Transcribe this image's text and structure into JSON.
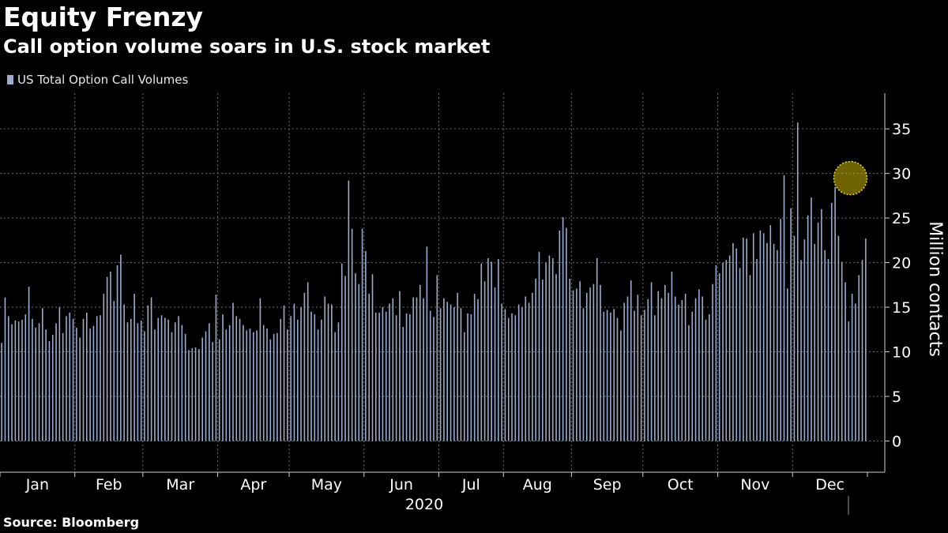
{
  "header": {
    "title": "Equity Frenzy",
    "subtitle": "Call option volume soars in U.S. stock market"
  },
  "footer": {
    "source": "Source: Bloomberg"
  },
  "colors": {
    "background": "#000000",
    "bars": "#9aaccf",
    "grid": "#6e6e6e",
    "highlight": "#c8b400",
    "text": "#ffffff"
  },
  "chart_data": {
    "type": "bar",
    "title": "Equity Frenzy",
    "subtitle": "Call option volume soars in U.S. stock market",
    "legend": [
      "US Total Option Call Volumes"
    ],
    "legend_position": "top-left",
    "ylabel": "Million contacts",
    "year_label": "2020",
    "ylim": [
      -3.5,
      39
    ],
    "yticks": [
      0,
      5,
      10,
      15,
      20,
      25,
      30,
      35
    ],
    "grid": true,
    "y_axis_position": "right",
    "x_ticks": [
      "Jan",
      "Feb",
      "Mar",
      "Apr",
      "May",
      "Jun",
      "Jul",
      "Aug",
      "Sep",
      "Oct",
      "Nov",
      "Dec"
    ],
    "highlight": {
      "note": "circle marking record-high late-December volumes",
      "value": 29.3
    },
    "series": [
      {
        "name": "US Total Option Call Volumes",
        "months": [
          {
            "month": "Jan",
            "values": [
              11.0,
              16.1,
              14.0,
              13.1,
              13.5,
              13.4,
              13.6,
              14.2,
              17.3,
              13.7,
              12.7,
              13.2,
              14.9,
              12.5,
              11.2,
              11.9,
              13.2,
              15.0,
              12.1,
              14.0,
              14.4,
              13.7
            ]
          },
          {
            "month": "Feb",
            "values": [
              12.7,
              11.6,
              13.7,
              14.4,
              12.6,
              12.9,
              14.0,
              14.1,
              16.5,
              18.4,
              19.0,
              15.7,
              19.7,
              20.9,
              15.3,
              13.3,
              13.7,
              16.5,
              13.2,
              13.5
            ]
          },
          {
            "month": "Mar",
            "values": [
              12.3,
              15.2,
              16.1,
              12.5,
              13.8,
              14.1,
              13.8,
              13.6,
              12.2,
              13.3,
              14.0,
              13.0,
              12.0,
              10.2,
              10.4,
              10.5,
              10.3,
              11.6,
              12.3,
              13.2,
              11.1,
              16.4
            ]
          },
          {
            "month": "Apr",
            "values": [
              11.4,
              14.2,
              12.5,
              13.0,
              15.5,
              14.0,
              13.7,
              13.0,
              12.4,
              12.6,
              12.2,
              12.4,
              16.0,
              13.0,
              12.6,
              11.4,
              12.0,
              12.1,
              13.7,
              15.2,
              12.5
            ]
          },
          {
            "month": "May",
            "values": [
              14.0,
              15.4,
              13.6,
              15.0,
              16.6,
              17.8,
              14.5,
              14.2,
              12.5,
              13.6,
              16.2,
              15.4,
              15.3,
              12.2,
              13.3,
              19.9,
              18.5,
              29.2,
              23.8,
              18.8,
              17.6,
              23.8
            ]
          },
          {
            "month": "Jun",
            "values": [
              21.3,
              16.5,
              18.7,
              14.4,
              14.4,
              15.0,
              14.5,
              15.4,
              16.0,
              14.1,
              16.8,
              12.8,
              14.3,
              14.2,
              16.1,
              16.1,
              17.5,
              16.0,
              21.8,
              14.6,
              13.9,
              18.6
            ]
          },
          {
            "month": "Jul",
            "values": [
              14.9,
              16.0,
              15.6,
              15.3,
              15.0,
              16.6,
              14.9,
              12.2,
              14.3,
              14.2,
              16.5,
              15.9,
              19.9,
              17.9,
              20.5,
              20.1,
              17.2,
              20.4,
              15.4
            ]
          },
          {
            "month": "Aug",
            "values": [
              14.8,
              13.8,
              14.3,
              14.1,
              15.3,
              15.0,
              16.2,
              15.5,
              16.6,
              18.2,
              21.2,
              18.1,
              20.0,
              20.8,
              20.5,
              18.7,
              23.6,
              25.1,
              23.9,
              18.2
            ]
          },
          {
            "month": "Sep",
            "values": [
              16.9,
              17.1,
              17.9,
              14.9,
              16.6,
              17.2,
              17.6,
              20.5,
              17.5,
              14.5,
              14.7,
              14.4,
              14.8,
              13.8,
              12.4,
              15.5,
              16.2,
              18.0,
              14.6,
              16.4,
              14.1
            ]
          },
          {
            "month": "Oct",
            "values": [
              14.7,
              15.9,
              17.8,
              14.1,
              16.8,
              16.0,
              17.5,
              16.6,
              19.0,
              16.2,
              15.3,
              15.8,
              16.5,
              13.0,
              14.5,
              16.0,
              17.0,
              16.2,
              13.6,
              14.2,
              17.6,
              19.7
            ]
          },
          {
            "month": "Nov",
            "values": [
              18.8,
              20.0,
              20.3,
              20.8,
              22.2,
              21.6,
              19.4,
              22.8,
              22.7,
              18.6,
              23.3,
              20.4,
              23.6,
              23.3,
              22.2,
              24.2,
              22.1,
              21.4,
              24.9,
              29.8,
              17.1,
              26.1
            ]
          },
          {
            "month": "Dec",
            "values": [
              23.0,
              35.7,
              20.3,
              22.6,
              25.3,
              27.3,
              22.1,
              24.5,
              26.0,
              21.4,
              20.4,
              26.7,
              28.5,
              23.0,
              20.1,
              17.8,
              13.4,
              16.5,
              15.4,
              18.6,
              20.3,
              22.7
            ]
          }
        ]
      }
    ]
  }
}
